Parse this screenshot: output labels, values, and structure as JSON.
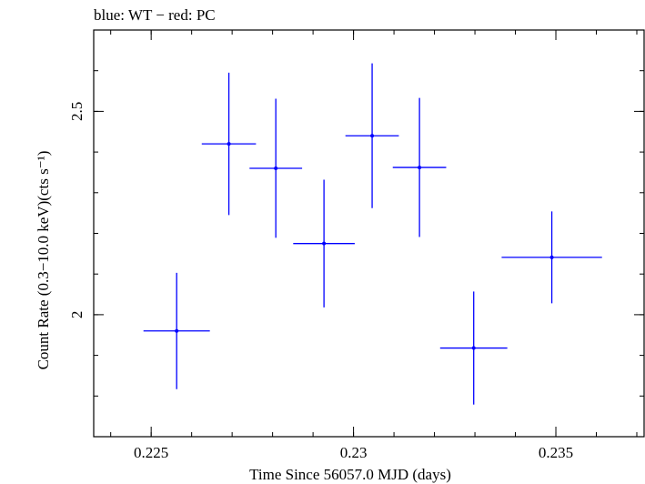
{
  "chart_data": {
    "type": "scatter",
    "title": "blue: WT − red: PC",
    "xlabel": "Time Since 56057.0 MJD (days)",
    "ylabel": "Count Rate (0.3−10.0 keV)(cts s⁻¹)",
    "xlim": [
      0.22358,
      0.23718
    ],
    "ylim": [
      1.7,
      2.7
    ],
    "x_ticks": [
      {
        "value": 0.225,
        "label": "0.225"
      },
      {
        "value": 0.23,
        "label": "0.23"
      },
      {
        "value": 0.235,
        "label": "0.235"
      }
    ],
    "y_ticks": [
      {
        "value": 2.0,
        "label": "2"
      },
      {
        "value": 2.5,
        "label": "2.5"
      }
    ],
    "x_minor_step": 0.001,
    "y_minor_step": 0.1,
    "grid": false,
    "series": [
      {
        "name": "WT",
        "color": "#0000ff",
        "points": [
          {
            "x": 0.22563,
            "xerr": 0.00082,
            "y": 1.96,
            "yerr": 0.143
          },
          {
            "x": 0.22692,
            "xerr": 0.00067,
            "y": 2.42,
            "yerr": 0.175
          },
          {
            "x": 0.22808,
            "xerr": 0.00065,
            "y": 2.36,
            "yerr": 0.171
          },
          {
            "x": 0.22927,
            "xerr": 0.00076,
            "y": 2.175,
            "yerr": 0.157
          },
          {
            "x": 0.23046,
            "xerr": 0.00066,
            "y": 2.44,
            "yerr": 0.178
          },
          {
            "x": 0.23163,
            "xerr": 0.00066,
            "y": 2.362,
            "yerr": 0.171
          },
          {
            "x": 0.23297,
            "xerr": 0.00083,
            "y": 1.918,
            "yerr": 0.139
          },
          {
            "x": 0.2349,
            "xerr": 0.00124,
            "y": 2.141,
            "yerr": 0.113
          }
        ]
      }
    ]
  }
}
